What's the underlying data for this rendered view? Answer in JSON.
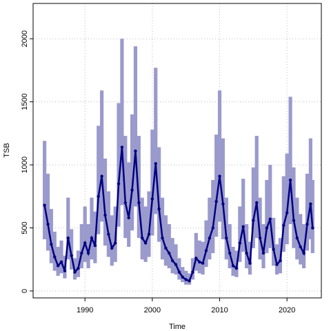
{
  "chart_data": {
    "type": "line",
    "xlabel": "Time",
    "ylabel": "TSB",
    "x": [
      1984,
      1984.5,
      1985,
      1985.5,
      1986,
      1986.5,
      1987,
      1987.5,
      1988,
      1988.5,
      1989,
      1989.5,
      1990,
      1990.5,
      1991,
      1991.5,
      1992,
      1992.5,
      1993,
      1993.5,
      1994,
      1994.5,
      1995,
      1995.5,
      1996,
      1996.5,
      1997,
      1997.5,
      1998,
      1998.5,
      1999,
      1999.5,
      2000,
      2000.5,
      2001,
      2001.5,
      2002,
      2002.5,
      2003,
      2003.5,
      2004,
      2004.5,
      2005,
      2005.5,
      2006,
      2006.5,
      2007,
      2007.5,
      2008,
      2008.5,
      2009,
      2009.5,
      2010,
      2010.5,
      2011,
      2011.5,
      2012,
      2012.5,
      2013,
      2013.5,
      2014,
      2014.5,
      2015,
      2015.5,
      2016,
      2016.5,
      2017,
      2017.5,
      2018,
      2018.5,
      2019,
      2019.5,
      2020,
      2020.5,
      2021,
      2021.5,
      2022,
      2022.5,
      2023,
      2023.5,
      2023.8
    ],
    "values": [
      680,
      530,
      370,
      270,
      200,
      230,
      160,
      420,
      280,
      150,
      180,
      300,
      380,
      300,
      420,
      360,
      750,
      910,
      600,
      450,
      340,
      380,
      850,
      1140,
      700,
      580,
      800,
      1110,
      700,
      420,
      380,
      450,
      730,
      1010,
      650,
      420,
      340,
      300,
      240,
      210,
      150,
      110,
      90,
      80,
      150,
      260,
      230,
      220,
      320,
      420,
      500,
      710,
      910,
      690,
      420,
      300,
      200,
      180,
      380,
      510,
      300,
      220,
      560,
      700,
      420,
      300,
      500,
      570,
      330,
      210,
      240,
      520,
      620,
      880,
      560,
      420,
      350,
      300,
      530,
      690,
      500
    ],
    "upper": [
      1190,
      930,
      650,
      470,
      350,
      400,
      280,
      740,
      490,
      260,
      320,
      530,
      670,
      530,
      740,
      630,
      1310,
      1590,
      1050,
      790,
      600,
      670,
      1490,
      2000,
      1230,
      1020,
      1400,
      1940,
      1230,
      740,
      670,
      790,
      1280,
      1770,
      1140,
      740,
      600,
      530,
      420,
      370,
      260,
      190,
      160,
      140,
      260,
      460,
      400,
      390,
      560,
      740,
      880,
      1240,
      1590,
      1210,
      740,
      530,
      350,
      320,
      670,
      890,
      530,
      390,
      980,
      1230,
      740,
      530,
      880,
      1000,
      580,
      370,
      420,
      910,
      1090,
      1540,
      980,
      740,
      610,
      530,
      930,
      1210,
      880
    ],
    "lower": [
      410,
      320,
      220,
      160,
      120,
      140,
      100,
      250,
      170,
      90,
      110,
      180,
      230,
      180,
      250,
      220,
      450,
      550,
      360,
      270,
      200,
      230,
      510,
      680,
      420,
      350,
      480,
      670,
      420,
      250,
      230,
      270,
      440,
      610,
      390,
      250,
      200,
      180,
      140,
      130,
      90,
      70,
      50,
      50,
      90,
      160,
      140,
      130,
      190,
      250,
      300,
      430,
      550,
      410,
      250,
      180,
      120,
      110,
      230,
      310,
      180,
      130,
      340,
      420,
      250,
      180,
      300,
      340,
      200,
      130,
      140,
      310,
      370,
      530,
      340,
      250,
      210,
      180,
      320,
      410,
      300
    ],
    "line_color": "#000080",
    "band_color": "#9a9acd",
    "xlim": [
      1982.3,
      2025.1
    ],
    "ylim": [
      -55,
      2280
    ],
    "xticks": [
      1990,
      2000,
      2010,
      2020
    ],
    "yticks": [
      0,
      500,
      1000,
      1500,
      2000
    ],
    "grid": true
  }
}
